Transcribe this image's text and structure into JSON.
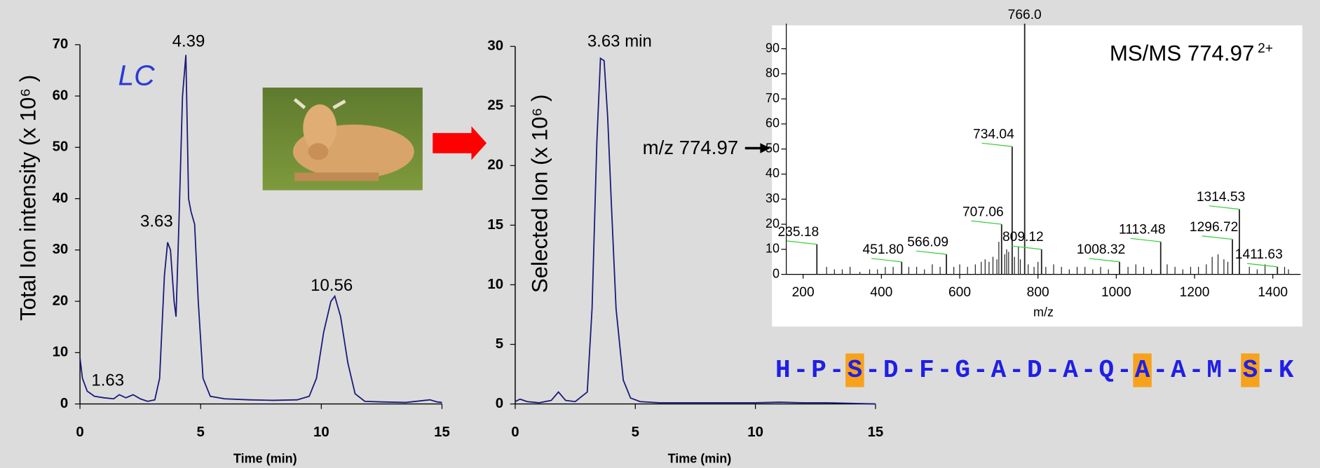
{
  "charts": [
    {
      "chart_data": {
        "type": "line",
        "ylabel": "Total Ion intensity (x 10⁶ )",
        "xlabel": "Time (min)",
        "label": "LC",
        "xlim": [
          0,
          15
        ],
        "ylim": [
          0,
          70
        ],
        "xticks": [
          0,
          5,
          10,
          15
        ],
        "yticks": [
          0,
          10,
          20,
          30,
          40,
          50,
          60,
          70
        ],
        "color": "#1a1a7a",
        "x": [
          0,
          0.1,
          0.3,
          0.6,
          1.0,
          1.4,
          1.63,
          1.9,
          2.2,
          2.5,
          2.8,
          3.1,
          3.3,
          3.5,
          3.63,
          3.75,
          3.9,
          3.98,
          4.1,
          4.25,
          4.39,
          4.5,
          4.6,
          4.75,
          4.9,
          5.1,
          5.4,
          6,
          7,
          8,
          9,
          9.5,
          9.8,
          10.1,
          10.4,
          10.56,
          10.8,
          11.1,
          11.4,
          11.8,
          12.5,
          13.5,
          14.5,
          14.8,
          15
        ],
        "values": [
          9,
          5,
          2.5,
          1.5,
          1.2,
          1,
          1.8,
          1.2,
          1.8,
          1,
          0.5,
          0.8,
          5,
          25,
          31.5,
          30,
          20,
          17,
          35,
          60,
          68,
          40,
          37.5,
          35,
          20,
          5,
          1.5,
          1,
          0.8,
          0.7,
          0.8,
          1.5,
          5,
          14,
          20,
          21,
          17,
          8,
          2,
          0.5,
          0.4,
          0.3,
          0.8,
          0.4,
          0.3
        ],
        "annotations": [
          "1.63",
          "3.63",
          "4.39",
          "10.56"
        ]
      }
    },
    {
      "chart_data": {
        "type": "line",
        "ylabel": "Selected Ion (x 10⁶ )",
        "xlabel": "Time (min)",
        "xlim": [
          0,
          15
        ],
        "ylim": [
          0,
          30
        ],
        "xticks": [
          0,
          5,
          10,
          15
        ],
        "yticks": [
          0,
          5,
          10,
          15,
          20,
          25,
          30
        ],
        "color": "#1a1a7a",
        "x": [
          0,
          0.2,
          0.5,
          1,
          1.5,
          1.8,
          2.1,
          2.5,
          3,
          3.2,
          3.4,
          3.55,
          3.7,
          3.85,
          4,
          4.2,
          4.5,
          4.8,
          5.2,
          6,
          8,
          10,
          11,
          12,
          13,
          14,
          15
        ],
        "values": [
          0.2,
          0.4,
          0.2,
          0.1,
          0.3,
          1,
          0.3,
          0.2,
          1,
          8,
          22,
          29,
          28.8,
          24,
          17,
          8,
          2,
          0.5,
          0.2,
          0.1,
          0.1,
          0.1,
          0.15,
          0.1,
          0.1,
          0.05,
          0
        ],
        "annotations": [
          "3.63 min"
        ]
      }
    },
    {
      "chart_data": {
        "type": "spectrum",
        "title": "MS/MS 774.97",
        "charge": "2+",
        "xlabel": "m/z",
        "annotation": "m/z 774.97",
        "xlim": [
          157,
          1471
        ],
        "ylim": [
          0,
          100
        ],
        "xticks": [
          200,
          400,
          600,
          800,
          1000,
          1200,
          1400
        ],
        "yticks": [
          0,
          10,
          20,
          30,
          40,
          50,
          60,
          70,
          80,
          90
        ],
        "color": "#222222",
        "series": [
          {
            "x": [
              235.18,
              451.8,
              566.09,
              707.06,
              734.04,
              766.0,
              809.12,
              1008.32,
              1113.48,
              1296.72,
              1314.53,
              1411.63
            ],
            "values": [
              12,
              5,
              8,
              20,
              51,
              100,
              10,
              5,
              13,
              14,
              26,
              3
            ],
            "labels": [
              "235.18",
              "451.80",
              "566.09",
              "707.06",
              "734.04",
              "766.0",
              "809.12",
              "1008.32",
              "1113.48",
              "1296.72",
              "1314.53",
              "1411.63"
            ]
          },
          {
            "x": [
              260,
              280,
              300,
              320,
              345,
              370,
              390,
              410,
              430,
              470,
              490,
              510,
              530,
              550,
              585,
              600,
              620,
              640,
              655,
              665,
              675,
              685,
              695,
              700,
              715,
              720,
              725,
              740,
              750,
              755,
              775,
              790,
              800,
              820,
              840,
              860,
              880,
              900,
              920,
              940,
              960,
              980,
              1030,
              1050,
              1070,
              1090,
              1130,
              1150,
              1170,
              1190,
              1210,
              1230,
              1245,
              1260,
              1275,
              1285,
              1340,
              1360,
              1380,
              1430,
              1440
            ],
            "values": [
              3,
              2,
              2,
              3,
              1,
              2,
              2,
              3,
              3,
              3,
              3,
              2,
              4,
              3,
              3,
              4,
              3,
              4,
              5,
              6,
              5,
              7,
              6,
              13,
              8,
              10,
              9,
              7,
              11,
              6,
              4,
              3,
              5,
              3,
              4,
              3,
              2,
              3,
              3,
              2,
              3,
              2,
              3,
              4,
              3,
              2,
              4,
              3,
              2,
              3,
              3,
              4,
              7,
              8,
              6,
              5,
              3,
              2,
              4,
              3,
              2
            ]
          }
        ]
      }
    }
  ],
  "peptide": {
    "residues": [
      "H",
      "P",
      "S",
      "D",
      "F",
      "G",
      "A",
      "D",
      "A",
      "Q",
      "A",
      "A",
      "M",
      "S",
      "K"
    ],
    "separator": "-",
    "highlight": [
      2,
      10,
      13
    ]
  }
}
